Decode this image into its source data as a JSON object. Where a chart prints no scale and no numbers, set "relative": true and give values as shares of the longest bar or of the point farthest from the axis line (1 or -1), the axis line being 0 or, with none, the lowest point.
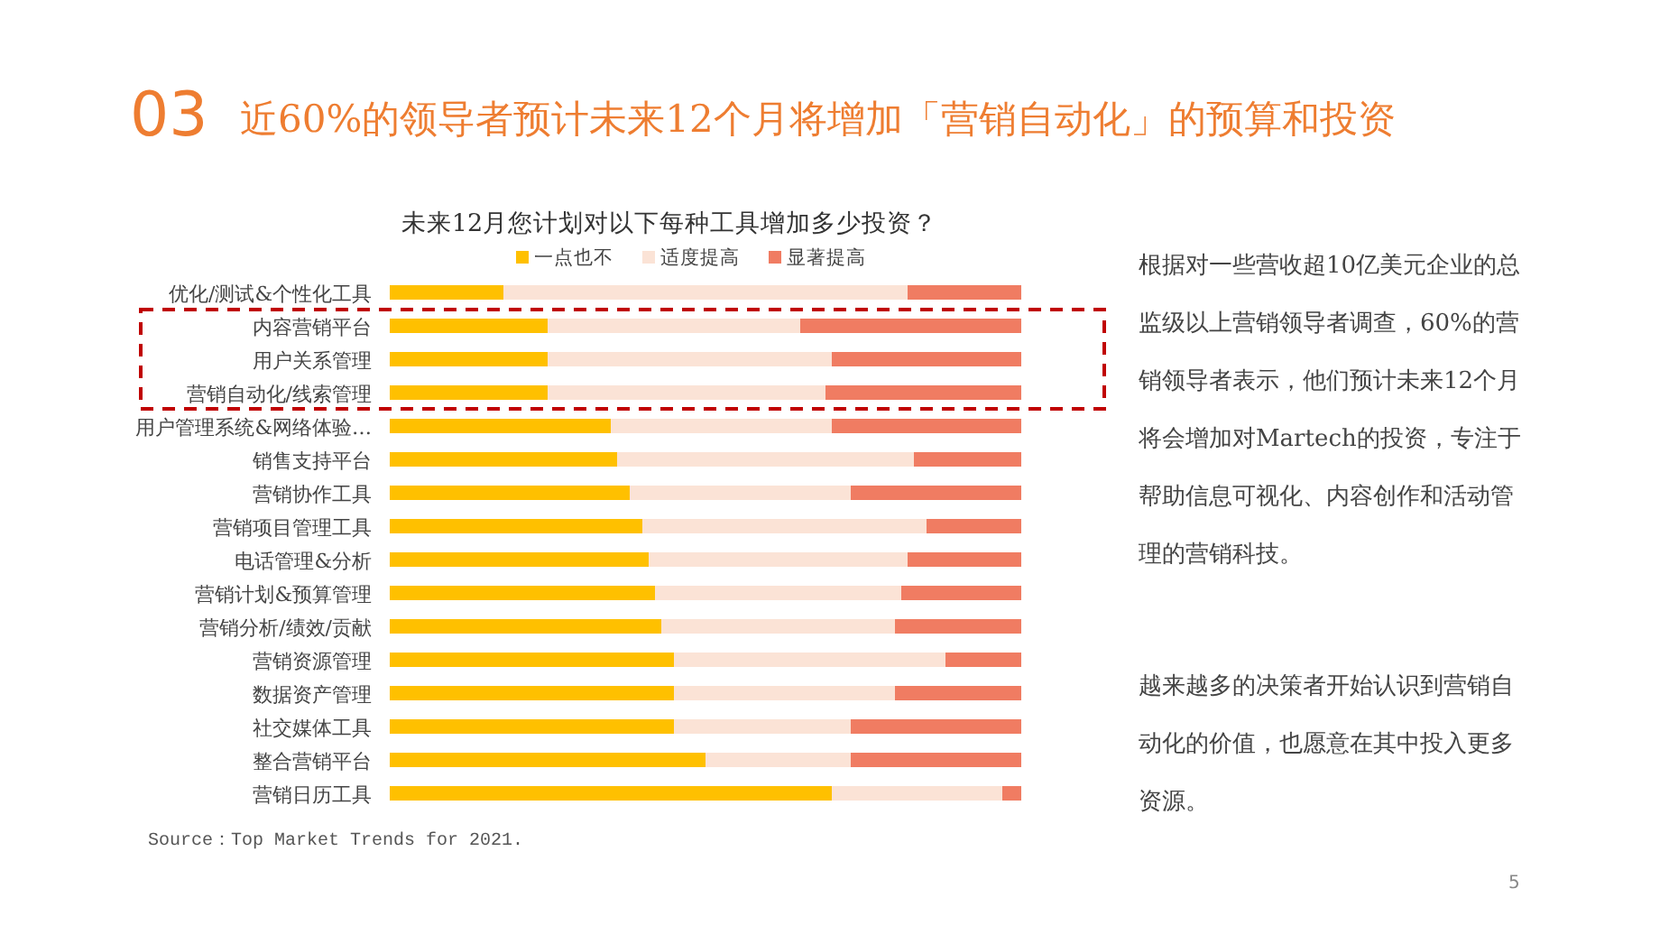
{
  "chart_data": {
    "type": "bar",
    "orientation": "horizontal",
    "stacked": true,
    "relative": true,
    "legend": "top",
    "title": "近60%的领导者预计未来12个月将增加「营销自动化」的预算和投资",
    "subtitle": "未来12月您计划对以下每种工具增加多少投资？",
    "categories": [
      "优化/测试&个性化工具",
      "内容营销平台",
      "用户关系管理",
      "营销自动化/线索管理",
      "用户管理系统&网络体验…",
      "销售支持平台",
      "营销协作工具",
      "营销项目管理工具",
      "电话管理&分析",
      "营销计划&预算管理",
      "营销分析/绩效/贡献",
      "营销资源管理",
      "数据资产管理",
      "社交媒体工具",
      "整合营销平台",
      "营销日历工具"
    ],
    "series": [
      {
        "name": "一点也不",
        "color": "#ffc000",
        "values": [
          0.18,
          0.25,
          0.25,
          0.25,
          0.35,
          0.36,
          0.38,
          0.4,
          0.41,
          0.42,
          0.43,
          0.45,
          0.45,
          0.45,
          0.5,
          0.7
        ]
      },
      {
        "name": "适度提高",
        "color": "#fbe3d6",
        "values": [
          0.64,
          0.4,
          0.45,
          0.44,
          0.35,
          0.47,
          0.35,
          0.45,
          0.41,
          0.39,
          0.37,
          0.43,
          0.35,
          0.28,
          0.23,
          0.27
        ]
      },
      {
        "name": "显著提高",
        "color": "#f07c62",
        "values": [
          0.18,
          0.35,
          0.3,
          0.31,
          0.3,
          0.17,
          0.27,
          0.15,
          0.18,
          0.19,
          0.2,
          0.12,
          0.2,
          0.27,
          0.27,
          0.03
        ]
      }
    ],
    "annotations": [
      "03",
      "根据对一些营收超10亿美元企业的总监级以上营销领导者调查，60%的营销领导者表示，他们预计未来12个月将会增加对Martech的投资，专注于帮助信息可视化、内容创作和活动管理的营销科技。",
      "越来越多的决策者开始认识到营销自动化的价值，也愿意在其中投入更多资源。",
      "Source：Top Market Trends for 2021.",
      "5"
    ]
  }
}
